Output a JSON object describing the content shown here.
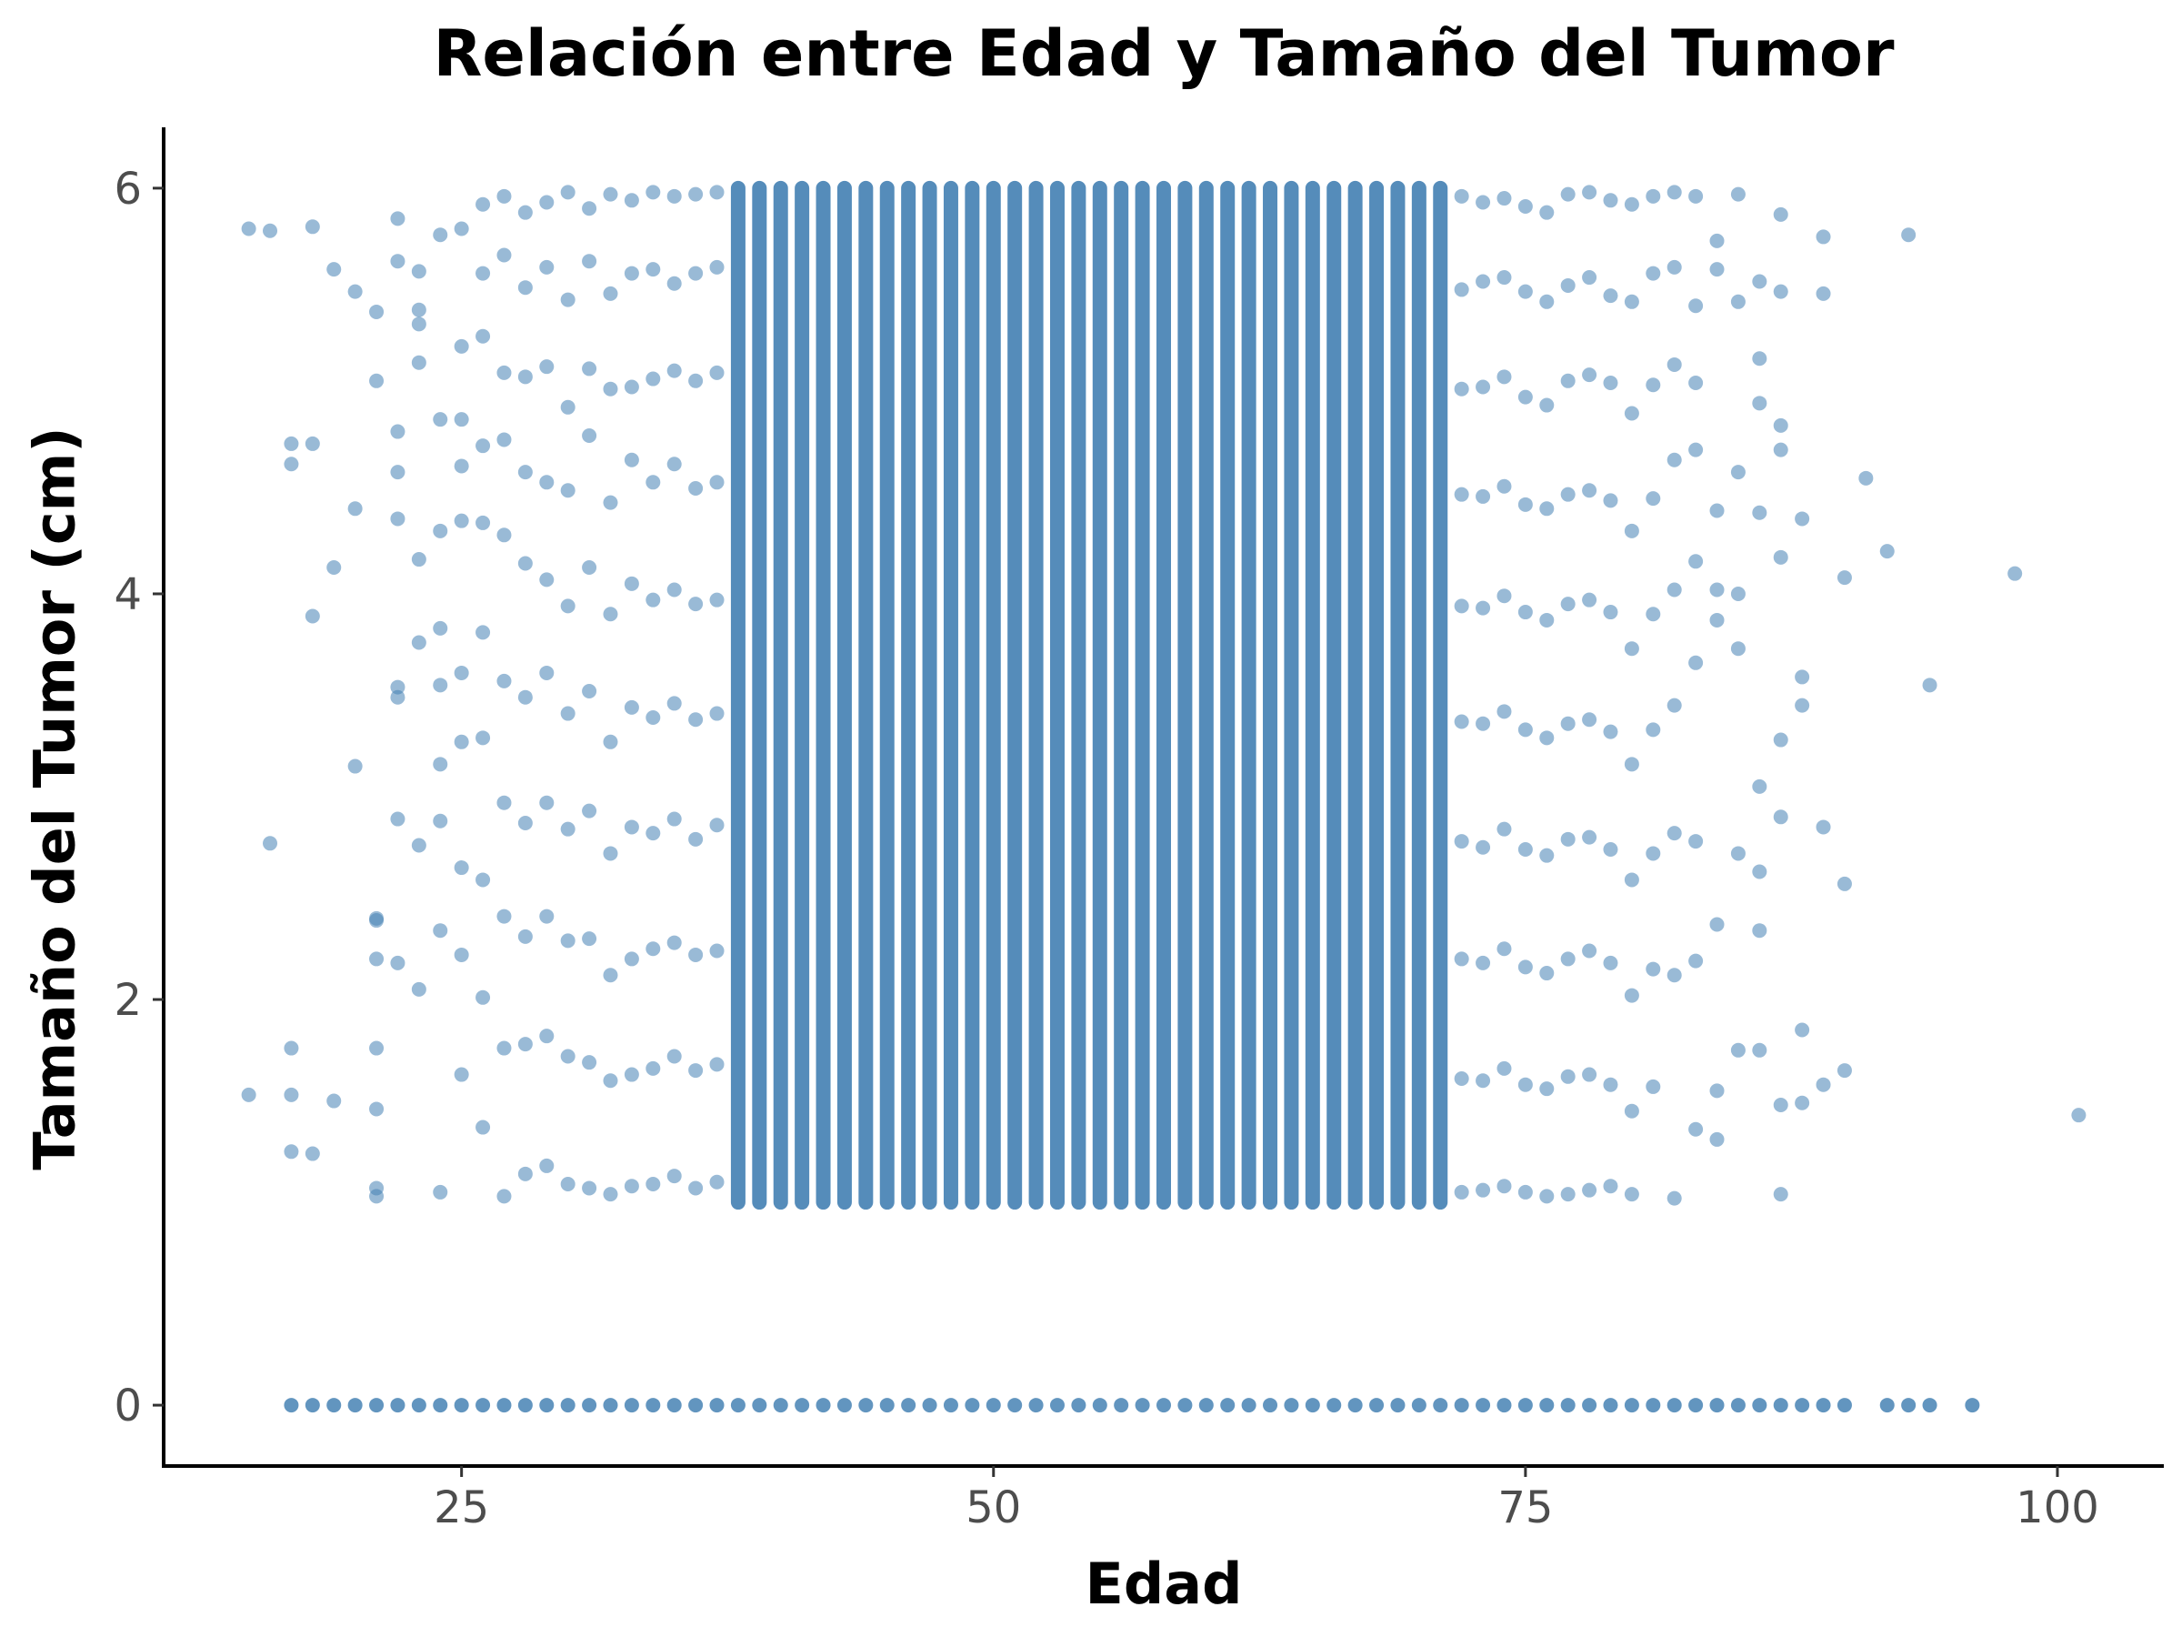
{
  "chart_data": {
    "type": "scatter",
    "title": "Relación entre Edad y Tamaño del Tumor",
    "xlabel": "Edad",
    "ylabel": "Tamaño del Tumor (cm)",
    "xlim": [
      11,
      105
    ],
    "ylim": [
      -0.3,
      6.3
    ],
    "xticks": [
      25,
      50,
      75,
      100
    ],
    "xtick_labels": [
      "25",
      "50",
      "75",
      "100"
    ],
    "yticks": [
      0,
      2,
      4,
      6
    ],
    "ytick_labels": [
      "0",
      "2",
      "4",
      "6"
    ],
    "grid": false,
    "legend": "none",
    "point_color": "#4682B4",
    "point_alpha": 0.55,
    "dense_band": {
      "age_min": 38,
      "age_max": 71,
      "size_min": 1.0,
      "size_max": 6.0
    },
    "zero_size_ages": [
      17,
      18,
      19,
      20,
      21,
      22,
      23,
      24,
      25,
      26,
      27,
      28,
      29,
      30,
      31,
      32,
      33,
      34,
      35,
      36,
      37,
      38,
      39,
      40,
      41,
      42,
      43,
      44,
      45,
      46,
      47,
      48,
      49,
      50,
      51,
      52,
      53,
      54,
      55,
      56,
      57,
      58,
      59,
      60,
      61,
      62,
      63,
      64,
      65,
      66,
      67,
      68,
      69,
      70,
      71,
      72,
      73,
      74,
      75,
      76,
      77,
      78,
      79,
      80,
      81,
      82,
      83,
      84,
      85,
      86,
      87,
      88,
      89,
      90,
      92,
      93,
      94,
      96
    ],
    "series": [
      {
        "x": [
          15,
          15,
          16,
          16,
          17,
          17,
          17,
          17,
          17,
          18,
          18,
          18,
          18,
          19,
          19,
          19,
          20,
          20,
          20,
          21,
          21,
          21,
          21,
          21,
          21,
          21,
          21,
          21,
          22,
          22,
          22,
          22,
          22,
          22,
          22,
          22,
          22,
          23,
          23,
          23,
          23,
          23,
          23,
          23,
          23,
          24,
          24,
          24,
          24,
          24,
          24,
          24,
          24,
          24,
          25,
          25,
          25,
          25,
          25,
          25,
          25,
          25,
          25,
          25,
          26,
          26,
          26,
          26,
          26,
          26,
          26,
          26,
          26,
          26,
          27,
          27,
          27,
          27,
          27,
          27,
          27,
          27,
          27,
          27,
          28,
          28,
          28,
          28,
          28,
          28,
          28,
          28,
          28,
          28,
          29,
          29,
          29,
          29,
          29,
          29,
          29,
          29,
          29,
          29,
          30,
          30,
          30,
          30,
          30,
          30,
          30,
          30,
          30,
          30,
          31,
          31,
          31,
          31,
          31,
          31,
          31,
          31,
          31,
          31,
          32,
          32,
          32,
          32,
          32,
          32,
          32,
          32,
          32,
          32,
          33,
          33,
          33,
          33,
          33,
          33,
          33,
          33,
          33,
          33,
          34,
          34,
          34,
          34,
          34,
          34,
          34,
          34,
          34,
          34,
          35,
          35,
          35,
          35,
          35,
          35,
          35,
          35,
          35,
          35,
          36,
          36,
          36,
          36,
          36,
          36,
          36,
          36,
          36,
          36,
          37,
          37,
          37,
          37,
          37,
          37,
          37,
          37,
          37,
          37,
          72,
          72,
          72,
          72,
          72,
          72,
          72,
          72,
          72,
          72,
          73,
          73,
          73,
          73,
          73,
          73,
          73,
          73,
          73,
          73,
          74,
          74,
          74,
          74,
          74,
          74,
          74,
          74,
          74,
          74,
          75,
          75,
          75,
          75,
          75,
          75,
          75,
          75,
          75,
          75,
          76,
          76,
          76,
          76,
          76,
          76,
          76,
          76,
          76,
          76,
          77,
          77,
          77,
          77,
          77,
          77,
          77,
          77,
          77,
          77,
          78,
          78,
          78,
          78,
          78,
          78,
          78,
          78,
          78,
          78,
          79,
          79,
          79,
          79,
          79,
          79,
          79,
          79,
          79,
          79,
          80,
          80,
          80,
          80,
          80,
          80,
          80,
          80,
          80,
          80,
          81,
          81,
          81,
          81,
          81,
          81,
          81,
          81,
          81,
          82,
          82,
          82,
          82,
          82,
          82,
          82,
          82,
          82,
          83,
          83,
          83,
          83,
          83,
          83,
          83,
          83,
          83,
          84,
          84,
          84,
          84,
          84,
          84,
          84,
          84,
          85,
          85,
          85,
          85,
          85,
          85,
          85,
          86,
          86,
          86,
          86,
          86,
          86,
          86,
          86,
          87,
          87,
          87,
          87,
          87,
          87,
          87,
          87,
          87,
          88,
          88,
          88,
          88,
          88,
          89,
          89,
          89,
          89,
          90,
          90,
          90,
          91,
          92,
          93,
          94,
          98,
          101
        ],
        "y": [
          5.8,
          1.53,
          5.79,
          2.77,
          4.64,
          1.76,
          1.53,
          1.25,
          4.74,
          1.24,
          3.89,
          4.74,
          5.81,
          5.6,
          1.5,
          4.13,
          5.49,
          4.42,
          3.15,
          2.4,
          2.2,
          1.76,
          1.46,
          1.07,
          1.03,
          5.05,
          5.39,
          2.39,
          5.85,
          5.64,
          4.8,
          4.6,
          4.37,
          3.54,
          3.49,
          2.89,
          2.18,
          5.59,
          5.4,
          5.33,
          5.14,
          4.17,
          3.76,
          2.76,
          2.05,
          5.77,
          4.86,
          4.31,
          3.83,
          3.55,
          3.16,
          2.88,
          2.34,
          1.05,
          5.8,
          5.22,
          4.86,
          4.63,
          4.36,
          3.61,
          3.27,
          2.65,
          2.22,
          1.63,
          5.92,
          5.58,
          5.27,
          4.73,
          4.35,
          3.81,
          3.29,
          2.59,
          2.01,
          1.37,
          5.96,
          5.67,
          5.09,
          4.76,
          4.29,
          3.57,
          2.97,
          2.41,
          1.76,
          1.03,
          5.88,
          5.51,
          5.07,
          4.6,
          4.15,
          3.49,
          2.87,
          2.31,
          1.78,
          1.14,
          5.93,
          5.61,
          5.12,
          4.55,
          4.07,
          3.61,
          2.97,
          2.41,
          1.82,
          1.18,
          5.98,
          5.45,
          4.92,
          4.51,
          3.94,
          3.41,
          2.84,
          2.29,
          1.72,
          1.09,
          5.9,
          5.64,
          5.11,
          4.78,
          4.13,
          3.52,
          2.93,
          2.3,
          1.69,
          1.07,
          5.97,
          5.48,
          5.01,
          4.45,
          3.9,
          3.27,
          2.72,
          2.12,
          1.6,
          1.04,
          5.94,
          5.58,
          5.02,
          4.66,
          4.05,
          3.44,
          2.85,
          2.2,
          1.63,
          1.08,
          5.98,
          5.6,
          5.06,
          4.55,
          3.97,
          3.39,
          2.82,
          2.25,
          1.66,
          1.09,
          5.96,
          5.53,
          5.1,
          4.64,
          4.02,
          3.46,
          2.89,
          2.28,
          1.72,
          1.13,
          5.97,
          5.58,
          5.05,
          4.52,
          3.95,
          3.38,
          2.79,
          2.22,
          1.65,
          1.07,
          5.98,
          5.61,
          5.09,
          4.55,
          3.97,
          3.41,
          2.86,
          2.24,
          1.68,
          1.1,
          5.96,
          5.5,
          5.01,
          4.49,
          3.94,
          3.37,
          2.78,
          2.2,
          1.61,
          1.05,
          5.93,
          5.54,
          5.02,
          4.48,
          3.93,
          3.36,
          2.75,
          2.18,
          1.6,
          1.06,
          5.95,
          5.56,
          5.07,
          4.53,
          3.99,
          3.42,
          2.84,
          2.25,
          1.66,
          1.08,
          5.91,
          5.49,
          4.97,
          4.44,
          3.91,
          3.33,
          2.74,
          2.16,
          1.58,
          1.05,
          5.88,
          5.44,
          4.93,
          4.42,
          3.87,
          3.29,
          2.71,
          2.13,
          1.56,
          1.03,
          5.97,
          5.52,
          5.05,
          4.49,
          3.95,
          3.36,
          2.79,
          2.2,
          1.62,
          1.04,
          5.98,
          5.56,
          5.08,
          4.51,
          3.97,
          3.38,
          2.8,
          2.24,
          1.63,
          1.06,
          5.94,
          5.47,
          5.04,
          4.46,
          3.91,
          3.32,
          2.74,
          2.18,
          1.58,
          1.08,
          5.92,
          5.44,
          4.89,
          4.31,
          3.73,
          3.16,
          2.59,
          2.02,
          1.45,
          1.04,
          5.96,
          5.58,
          5.03,
          4.47,
          3.9,
          3.33,
          2.72,
          2.15,
          1.57,
          5.98,
          5.61,
          5.13,
          4.66,
          4.02,
          3.45,
          2.82,
          2.12,
          1.02,
          5.96,
          5.42,
          5.04,
          4.71,
          4.16,
          3.66,
          2.78,
          2.19,
          1.36,
          5.74,
          5.6,
          4.41,
          4.02,
          3.87,
          2.37,
          1.55,
          1.31,
          5.97,
          5.44,
          4.6,
          4.0,
          3.73,
          2.72,
          1.75,
          5.54,
          5.16,
          4.94,
          4.4,
          3.05,
          2.63,
          2.34,
          1.75,
          5.87,
          5.49,
          4.83,
          4.71,
          4.18,
          3.28,
          2.9,
          1.48,
          1.04,
          4.37,
          3.59,
          3.45,
          1.85,
          1.49,
          5.76,
          5.48,
          2.85,
          1.58,
          4.08,
          2.57,
          1.65,
          4.57,
          4.21,
          5.77,
          3.55,
          4.1,
          1.43
        ]
      }
    ]
  }
}
